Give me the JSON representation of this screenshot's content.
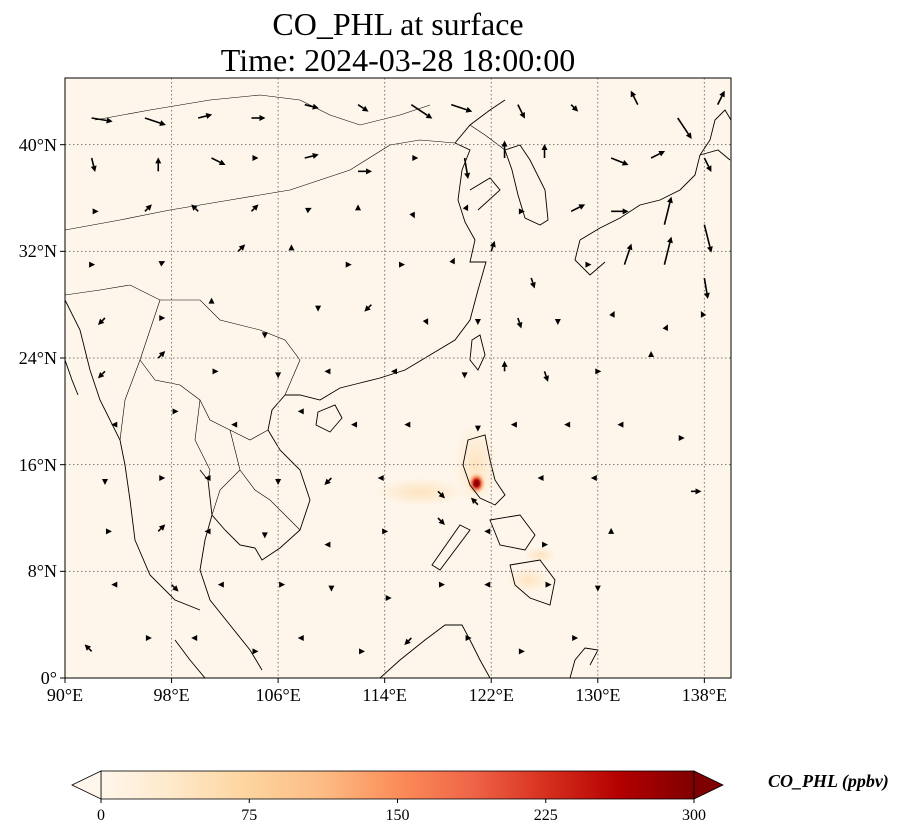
{
  "title": {
    "line1": "CO_PHL at surface",
    "line2": "Time: 2024-03-28 18:00:00"
  },
  "map": {
    "projection": "PlateCarree",
    "lon_range": [
      90,
      140
    ],
    "lat_range": [
      0,
      45
    ],
    "gridlines": "dotted",
    "lon_ticks": [
      "90°E",
      "98°E",
      "106°E",
      "114°E",
      "122°E",
      "130°E",
      "138°E"
    ],
    "lat_ticks": [
      "0°",
      "8°N",
      "16°N",
      "24°N",
      "32°N",
      "40°N"
    ],
    "background_color": "#fef6ea",
    "hotspot": {
      "lon": 120.9,
      "lat": 14.6,
      "value_ppbv": 240,
      "place": "Manila"
    }
  },
  "colorbar": {
    "label": "CO_PHL (ppbv)",
    "min": 0,
    "max": 300,
    "ticks": [
      "0",
      "75",
      "150",
      "225",
      "300"
    ],
    "extend": "both",
    "colormap": "OrRd",
    "colors": [
      "#fff7ec",
      "#fee8c8",
      "#fdd49e",
      "#fdbb84",
      "#fc8d59",
      "#ef6548",
      "#d7301f",
      "#b30000",
      "#7f0000"
    ]
  },
  "wind_vectors": [
    {
      "lon": 92,
      "lat": 42,
      "u": 3,
      "v": -0.5
    },
    {
      "lon": 96,
      "lat": 42,
      "u": 3,
      "v": -1
    },
    {
      "lon": 100,
      "lat": 42,
      "u": 2,
      "v": 0.5
    },
    {
      "lon": 104,
      "lat": 42,
      "u": 2,
      "v": 0
    },
    {
      "lon": 108,
      "lat": 43,
      "u": 2,
      "v": -0.5
    },
    {
      "lon": 112,
      "lat": 43,
      "u": 1.5,
      "v": -1
    },
    {
      "lon": 116,
      "lat": 43,
      "u": 3,
      "v": -2
    },
    {
      "lon": 119,
      "lat": 43,
      "u": 3,
      "v": -1
    },
    {
      "lon": 124,
      "lat": 43,
      "u": 1,
      "v": -2
    },
    {
      "lon": 128,
      "lat": 43,
      "u": 1,
      "v": -1
    },
    {
      "lon": 133,
      "lat": 43,
      "u": -1,
      "v": 2
    },
    {
      "lon": 136,
      "lat": 42,
      "u": 2,
      "v": -3
    },
    {
      "lon": 139,
      "lat": 43,
      "u": 1,
      "v": 2
    },
    {
      "lon": 92,
      "lat": 39,
      "u": 0.5,
      "v": -2
    },
    {
      "lon": 97,
      "lat": 38,
      "u": 0,
      "v": 2
    },
    {
      "lon": 101,
      "lat": 39,
      "u": 2,
      "v": -1
    },
    {
      "lon": 104,
      "lat": 39,
      "u": 1,
      "v": 0
    },
    {
      "lon": 108,
      "lat": 39,
      "u": 2,
      "v": 0.5
    },
    {
      "lon": 112,
      "lat": 38,
      "u": 2,
      "v": 0
    },
    {
      "lon": 116,
      "lat": 39,
      "u": 1,
      "v": 0
    },
    {
      "lon": 120,
      "lat": 39,
      "u": 0.5,
      "v": -3
    },
    {
      "lon": 123,
      "lat": 39,
      "u": 0,
      "v": 2.5
    },
    {
      "lon": 126,
      "lat": 39,
      "u": 0,
      "v": 2
    },
    {
      "lon": 131,
      "lat": 39,
      "u": 2.5,
      "v": -1
    },
    {
      "lon": 134,
      "lat": 39,
      "u": 2,
      "v": 1
    },
    {
      "lon": 138,
      "lat": 39,
      "u": 1,
      "v": -2
    },
    {
      "lon": 92,
      "lat": 35,
      "u": 1,
      "v": 0
    },
    {
      "lon": 96,
      "lat": 35,
      "u": 1,
      "v": 1
    },
    {
      "lon": 100,
      "lat": 35,
      "u": -1,
      "v": 1
    },
    {
      "lon": 104,
      "lat": 35,
      "u": 1,
      "v": 1
    },
    {
      "lon": 108,
      "lat": 35,
      "u": 1,
      "v": 0.5
    },
    {
      "lon": 112,
      "lat": 35,
      "u": 0,
      "v": 1
    },
    {
      "lon": 116,
      "lat": 35,
      "u": 0.5,
      "v": -1
    },
    {
      "lon": 120,
      "lat": 35,
      "u": 0.5,
      "v": 1
    },
    {
      "lon": 124,
      "lat": 35,
      "u": 1,
      "v": 0
    },
    {
      "lon": 128,
      "lat": 35,
      "u": 2,
      "v": 1
    },
    {
      "lon": 131,
      "lat": 35,
      "u": 2.5,
      "v": 0
    },
    {
      "lon": 135,
      "lat": 34,
      "u": 1,
      "v": 4
    },
    {
      "lon": 138,
      "lat": 34,
      "u": 1,
      "v": -4
    },
    {
      "lon": 92,
      "lat": 31,
      "u": 0.5,
      "v": 0
    },
    {
      "lon": 97,
      "lat": 31,
      "u": 1,
      "v": 0.5
    },
    {
      "lon": 103,
      "lat": 32,
      "u": 1,
      "v": 1
    },
    {
      "lon": 107,
      "lat": 32,
      "u": 0,
      "v": 1
    },
    {
      "lon": 111,
      "lat": 31,
      "u": 1,
      "v": 0
    },
    {
      "lon": 115,
      "lat": 31,
      "u": 1,
      "v": 0
    },
    {
      "lon": 119,
      "lat": 31,
      "u": 0.5,
      "v": 1
    },
    {
      "lon": 122,
      "lat": 32,
      "u": 0.5,
      "v": 1.5
    },
    {
      "lon": 125,
      "lat": 30,
      "u": 0.5,
      "v": -1.5
    },
    {
      "lon": 129,
      "lat": 31,
      "u": 1,
      "v": 0
    },
    {
      "lon": 132,
      "lat": 31,
      "u": 1,
      "v": 3
    },
    {
      "lon": 135,
      "lat": 31,
      "u": 1,
      "v": 4
    },
    {
      "lon": 138,
      "lat": 30,
      "u": 0.5,
      "v": -3
    },
    {
      "lon": 93,
      "lat": 27,
      "u": -1,
      "v": -1
    },
    {
      "lon": 97,
      "lat": 27,
      "u": 1,
      "v": 0
    },
    {
      "lon": 101,
      "lat": 28,
      "u": 0,
      "v": 1
    },
    {
      "lon": 105,
      "lat": 26,
      "u": 0,
      "v": -1
    },
    {
      "lon": 109,
      "lat": 28,
      "u": 0,
      "v": -1
    },
    {
      "lon": 113,
      "lat": 28,
      "u": -1,
      "v": -1
    },
    {
      "lon": 117,
      "lat": 27,
      "u": 0.5,
      "v": -1
    },
    {
      "lon": 121,
      "lat": 27,
      "u": 0,
      "v": -1
    },
    {
      "lon": 124,
      "lat": 27,
      "u": 0.5,
      "v": -1.5
    },
    {
      "lon": 127,
      "lat": 27,
      "u": 0,
      "v": -1
    },
    {
      "lon": 131,
      "lat": 27,
      "u": 0.5,
      "v": 1
    },
    {
      "lon": 135,
      "lat": 26,
      "u": 0.5,
      "v": 1
    },
    {
      "lon": 138,
      "lat": 27,
      "u": -0.5,
      "v": 1
    },
    {
      "lon": 93,
      "lat": 23,
      "u": -1,
      "v": -1
    },
    {
      "lon": 97,
      "lat": 24,
      "u": 1,
      "v": 1
    },
    {
      "lon": 101,
      "lat": 23,
      "u": 1,
      "v": 0
    },
    {
      "lon": 106,
      "lat": 23,
      "u": 0,
      "v": -1
    },
    {
      "lon": 110,
      "lat": 23,
      "u": -1,
      "v": 0
    },
    {
      "lon": 115,
      "lat": 23,
      "u": -1,
      "v": 0
    },
    {
      "lon": 120,
      "lat": 23,
      "u": 0,
      "v": -1
    },
    {
      "lon": 123,
      "lat": 23,
      "u": 0,
      "v": 1.5
    },
    {
      "lon": 126,
      "lat": 23,
      "u": 0.5,
      "v": -1.5
    },
    {
      "lon": 130,
      "lat": 23,
      "u": 0.5,
      "v": 0
    },
    {
      "lon": 134,
      "lat": 24,
      "u": 0,
      "v": 1
    },
    {
      "lon": 94,
      "lat": 19,
      "u": -1,
      "v": 0
    },
    {
      "lon": 98,
      "lat": 20,
      "u": 1,
      "v": 0
    },
    {
      "lon": 103,
      "lat": 19,
      "u": -1,
      "v": 0
    },
    {
      "lon": 108,
      "lat": 20,
      "u": -1,
      "v": 0
    },
    {
      "lon": 112,
      "lat": 19,
      "u": -1,
      "v": 0
    },
    {
      "lon": 116,
      "lat": 19,
      "u": -1,
      "v": 0
    },
    {
      "lon": 121,
      "lat": 19,
      "u": 0,
      "v": -1
    },
    {
      "lon": 124,
      "lat": 19,
      "u": -1,
      "v": 0
    },
    {
      "lon": 128,
      "lat": 19,
      "u": -1,
      "v": 0
    },
    {
      "lon": 132,
      "lat": 19,
      "u": -1,
      "v": 0
    },
    {
      "lon": 136,
      "lat": 18,
      "u": 1,
      "v": 0
    },
    {
      "lon": 93,
      "lat": 15,
      "u": 0,
      "v": -1
    },
    {
      "lon": 97,
      "lat": 15,
      "u": 1,
      "v": 0
    },
    {
      "lon": 101,
      "lat": 15,
      "u": -1,
      "v": 0
    },
    {
      "lon": 106,
      "lat": 15,
      "u": 0,
      "v": -1
    },
    {
      "lon": 110,
      "lat": 15,
      "u": -1,
      "v": -1
    },
    {
      "lon": 114,
      "lat": 15,
      "u": -1,
      "v": 0
    },
    {
      "lon": 118,
      "lat": 14,
      "u": 1,
      "v": -1
    },
    {
      "lon": 121,
      "lat": 13,
      "u": -1,
      "v": 1
    },
    {
      "lon": 126,
      "lat": 15,
      "u": -1,
      "v": 0
    },
    {
      "lon": 130,
      "lat": 15,
      "u": -1,
      "v": 0
    },
    {
      "lon": 137,
      "lat": 14,
      "u": 1.5,
      "v": 0
    },
    {
      "lon": 93,
      "lat": 11,
      "u": 1,
      "v": 0
    },
    {
      "lon": 97,
      "lat": 11,
      "u": 1,
      "v": 1
    },
    {
      "lon": 101,
      "lat": 11,
      "u": -1,
      "v": 0
    },
    {
      "lon": 105,
      "lat": 11,
      "u": 0,
      "v": -1
    },
    {
      "lon": 110,
      "lat": 10,
      "u": -1,
      "v": 0
    },
    {
      "lon": 114,
      "lat": 11,
      "u": 0.5,
      "v": 0
    },
    {
      "lon": 118,
      "lat": 12,
      "u": 1,
      "v": -1
    },
    {
      "lon": 122,
      "lat": 11,
      "u": -1,
      "v": 0
    },
    {
      "lon": 126,
      "lat": 10,
      "u": 0.5,
      "v": 0
    },
    {
      "lon": 131,
      "lat": 11,
      "u": 0,
      "v": 0.5
    },
    {
      "lon": 94,
      "lat": 7,
      "u": -1,
      "v": 0
    },
    {
      "lon": 98,
      "lat": 7,
      "u": 1,
      "v": -1
    },
    {
      "lon": 102,
      "lat": 7,
      "u": -1,
      "v": 0
    },
    {
      "lon": 106,
      "lat": 7,
      "u": 1,
      "v": 0
    },
    {
      "lon": 110,
      "lat": 7,
      "u": 0,
      "v": -1
    },
    {
      "lon": 114,
      "lat": 6,
      "u": 1,
      "v": 0
    },
    {
      "lon": 118,
      "lat": 7,
      "u": 1,
      "v": 0
    },
    {
      "lon": 122,
      "lat": 7,
      "u": -1,
      "v": 0
    },
    {
      "lon": 126,
      "lat": 7,
      "u": 1,
      "v": 0
    },
    {
      "lon": 130,
      "lat": 7,
      "u": 0,
      "v": -1
    },
    {
      "lon": 92,
      "lat": 2,
      "u": -1,
      "v": 1
    },
    {
      "lon": 96,
      "lat": 3,
      "u": 1,
      "v": 0
    },
    {
      "lon": 100,
      "lat": 3,
      "u": -1,
      "v": 0
    },
    {
      "lon": 104,
      "lat": 2,
      "u": 1,
      "v": 0
    },
    {
      "lon": 108,
      "lat": 3,
      "u": -1,
      "v": 0
    },
    {
      "lon": 112,
      "lat": 2,
      "u": 1,
      "v": 0
    },
    {
      "lon": 116,
      "lat": 3,
      "u": -1,
      "v": -1
    },
    {
      "lon": 120,
      "lat": 3,
      "u": 1,
      "v": 0
    },
    {
      "lon": 124,
      "lat": 2,
      "u": 1,
      "v": 0
    },
    {
      "lon": 128,
      "lat": 3,
      "u": 1,
      "v": 0
    }
  ]
}
